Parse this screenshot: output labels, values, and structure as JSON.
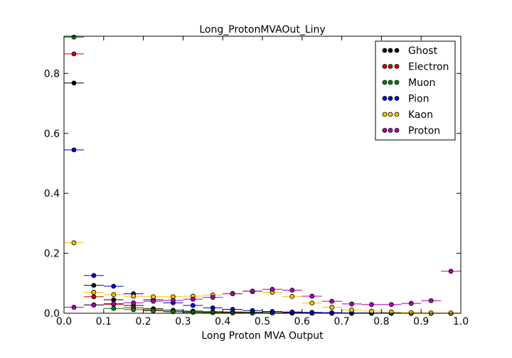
{
  "chart_data": {
    "type": "scatter",
    "title": "Long_ProtonMVAOut_Liny",
    "xlabel": "Long Proton MVA Output",
    "ylabel": "",
    "xlim": [
      0.0,
      1.0
    ],
    "ylim": [
      0.0,
      0.924
    ],
    "x_ticks": [
      "0.0",
      "0.1",
      "0.2",
      "0.3",
      "0.4",
      "0.5",
      "0.6",
      "0.7",
      "0.8",
      "0.9",
      "1.0"
    ],
    "y_ticks": [
      "0.0",
      "0.2",
      "0.4",
      "0.6",
      "0.8"
    ],
    "grid": false,
    "legend_position": "top-right",
    "bin_width": 0.05,
    "x": [
      0.025,
      0.075,
      0.125,
      0.175,
      0.225,
      0.275,
      0.325,
      0.375,
      0.425,
      0.475,
      0.525,
      0.575,
      0.625,
      0.675,
      0.725,
      0.775,
      0.825,
      0.875,
      0.925,
      0.975
    ],
    "series": [
      {
        "name": "Ghost",
        "color": "#000000",
        "values": [
          0.768,
          0.093,
          0.045,
          0.026,
          0.015,
          0.01,
          0.007,
          0.005,
          0.004,
          0.003,
          0.002,
          0.002,
          0.001,
          0.001,
          0.001,
          0.001,
          0.0,
          0.0,
          0.0,
          0.0
        ]
      },
      {
        "name": "Electron",
        "color": "#cc0000",
        "values": [
          0.865,
          0.055,
          0.03,
          0.018,
          0.011,
          0.006,
          0.004,
          0.003,
          0.002,
          0.001,
          0.001,
          0.001,
          0.0,
          0.0,
          0.0,
          0.0,
          0.0,
          0.0,
          0.0,
          0.0
        ]
      },
      {
        "name": "Muon",
        "color": "#008000",
        "values": [
          0.921,
          0.028,
          0.016,
          0.012,
          0.008,
          0.005,
          0.003,
          0.002,
          0.001,
          0.001,
          0.001,
          0.0,
          0.0,
          0.0,
          0.0,
          0.0,
          0.0,
          0.0,
          0.0,
          0.0
        ]
      },
      {
        "name": "Pion",
        "color": "#0000cc",
        "values": [
          0.545,
          0.126,
          0.09,
          0.065,
          0.045,
          0.035,
          0.026,
          0.018,
          0.013,
          0.009,
          0.006,
          0.004,
          0.003,
          0.002,
          0.001,
          0.001,
          0.001,
          0.0,
          0.0,
          0.0
        ]
      },
      {
        "name": "Kaon",
        "color": "#f5c400",
        "values": [
          0.235,
          0.07,
          0.062,
          0.057,
          0.055,
          0.055,
          0.057,
          0.061,
          0.066,
          0.072,
          0.07,
          0.056,
          0.034,
          0.02,
          0.011,
          0.007,
          0.004,
          0.002,
          0.001,
          0.001
        ]
      },
      {
        "name": "Proton",
        "color": "#aa00aa",
        "values": [
          0.02,
          0.027,
          0.032,
          0.035,
          0.04,
          0.043,
          0.047,
          0.053,
          0.065,
          0.074,
          0.08,
          0.077,
          0.057,
          0.04,
          0.031,
          0.029,
          0.029,
          0.033,
          0.042,
          0.14
        ]
      }
    ]
  }
}
